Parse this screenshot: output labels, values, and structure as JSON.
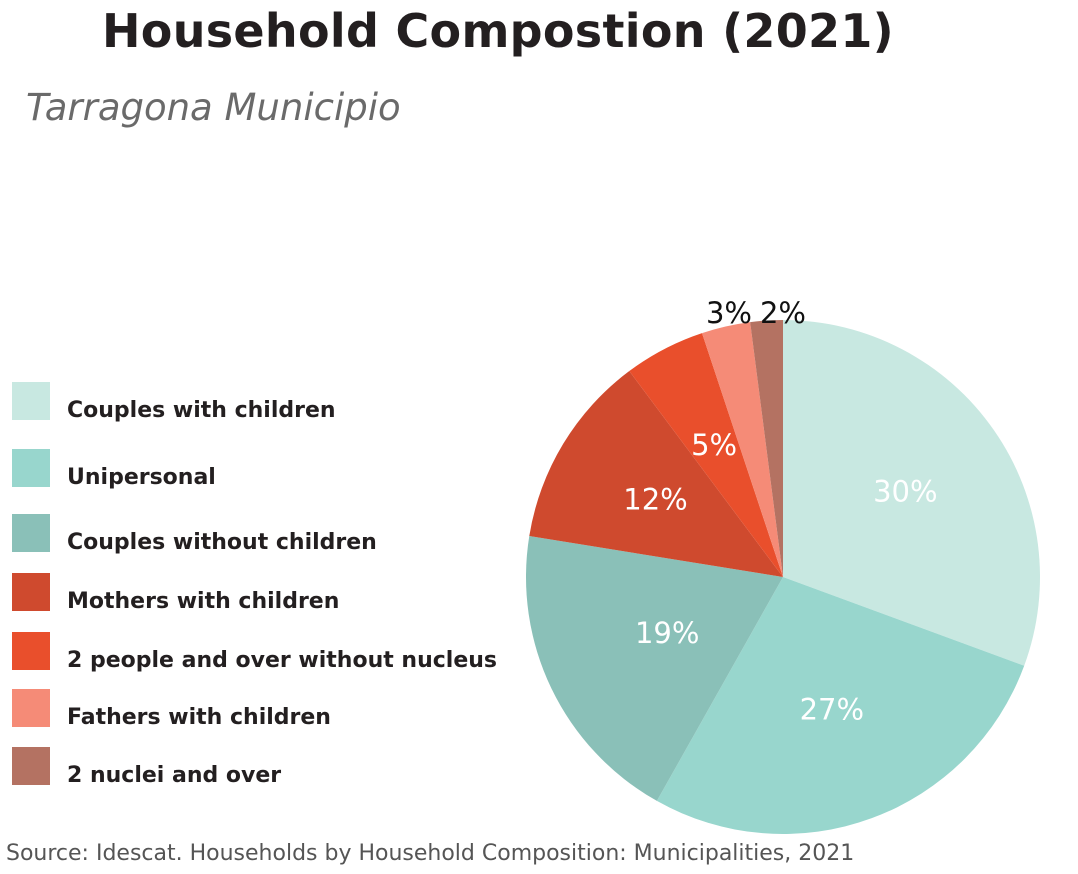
{
  "chart_data": {
    "type": "pie",
    "title": "Household Compostion (2021)",
    "subtitle": "Tarragona Municipio",
    "source": "Source: Idescat. Households by Household Composition: Municipalities, 2021",
    "slices": [
      {
        "name": "Couples with children",
        "value": 30,
        "label": "30%",
        "color": "#c8e8e1"
      },
      {
        "name": "Unipersonal",
        "value": 27,
        "label": "27%",
        "color": "#98d6cd"
      },
      {
        "name": "Couples without children",
        "value": 19,
        "label": "19%",
        "color": "#8ac0b8"
      },
      {
        "name": "Mothers with children",
        "value": 12,
        "label": "12%",
        "color": "#cf4a2e"
      },
      {
        "name": "2 people and over without nucleus",
        "value": 5,
        "label": "5%",
        "color": "#e94f2c"
      },
      {
        "name": "Fathers with children",
        "value": 3,
        "label": "3%",
        "color": "#f58b77"
      },
      {
        "name": "2 nuclei and over",
        "value": 2,
        "label": "2%",
        "color": "#b47262"
      }
    ],
    "legend_position": "left"
  }
}
